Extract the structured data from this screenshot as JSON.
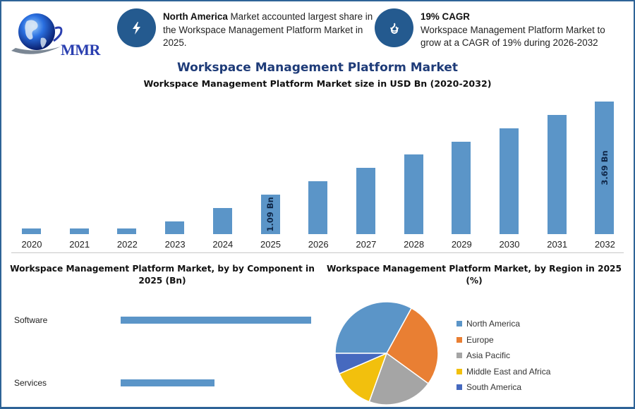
{
  "brand": {
    "logo_text": "MMR"
  },
  "info_cards": [
    {
      "icon": "lightning-bolt-icon",
      "bold": "North America",
      "text": " Market accounted largest share in the Workspace Management Platform Market in 2025."
    },
    {
      "icon": "flame-drop-icon",
      "bold": "19% CAGR",
      "text": "Workspace Management Platform Market to grow at a CAGR of 19% during 2026-2032"
    }
  ],
  "colors": {
    "bar": "#5b95c8",
    "accent": "#245a8f",
    "title": "#1e3b78",
    "frame": "#2e6397"
  },
  "main_title": "Workspace Management Platform Market",
  "chart_data": [
    {
      "type": "bar",
      "title": "Workspace Management Platform Market size in USD Bn (2020-2032)",
      "xlabel": "",
      "ylabel": "USD Bn",
      "categories": [
        "2020",
        "2021",
        "2022",
        "2023",
        "2024",
        "2025",
        "2026",
        "2027",
        "2028",
        "2029",
        "2030",
        "2031",
        "2032"
      ],
      "values": [
        0.16,
        0.16,
        0.16,
        0.35,
        0.72,
        1.09,
        1.47,
        1.84,
        2.21,
        2.58,
        2.95,
        3.32,
        3.69
      ],
      "data_labels": {
        "2025": "1.09 Bn",
        "2032": "3.69 Bn"
      },
      "ylim": [
        0,
        3.69
      ],
      "grid": false,
      "legend": "none"
    },
    {
      "type": "bar",
      "orientation": "horizontal",
      "title": "Workspace Management Platform Market, by by Component in 2025 (Bn)",
      "categories": [
        "Software",
        "Services"
      ],
      "values": [
        0.73,
        0.36
      ],
      "grid": false,
      "legend": "none"
    },
    {
      "type": "pie",
      "title": "Workspace Management Platform Market, by Region in 2025 (%)",
      "categories": [
        "North America",
        "Europe",
        "Asia Pacific",
        "Middle East and Africa",
        "South America"
      ],
      "values": [
        33,
        27,
        20.5,
        13,
        6.5
      ],
      "colors": [
        "#5b95c8",
        "#e97f33",
        "#a5a5a5",
        "#f2c00d",
        "#4669bf"
      ],
      "legend_position": "right"
    }
  ],
  "bar_chart": {
    "subtitle": "Workspace Management Platform Market size in USD Bn (2020-2032)",
    "label_2025": "1.09 Bn",
    "label_2032": "3.69 Bn",
    "years": [
      "2020",
      "2021",
      "2022",
      "2023",
      "2024",
      "2025",
      "2026",
      "2027",
      "2028",
      "2029",
      "2030",
      "2031",
      "2032"
    ]
  },
  "component_chart": {
    "title_line1": "Workspace Management Platform Market, by by Component in",
    "title_line2": "2025 (Bn)",
    "labels": [
      "Software",
      "Services"
    ]
  },
  "region_chart": {
    "title_line1": "Workspace Management Platform Market, by Region in 2025",
    "title_line2": "(%)",
    "legend": [
      "North America",
      "Europe",
      "Asia Pacific",
      "Middle East and Africa",
      "South America"
    ]
  }
}
